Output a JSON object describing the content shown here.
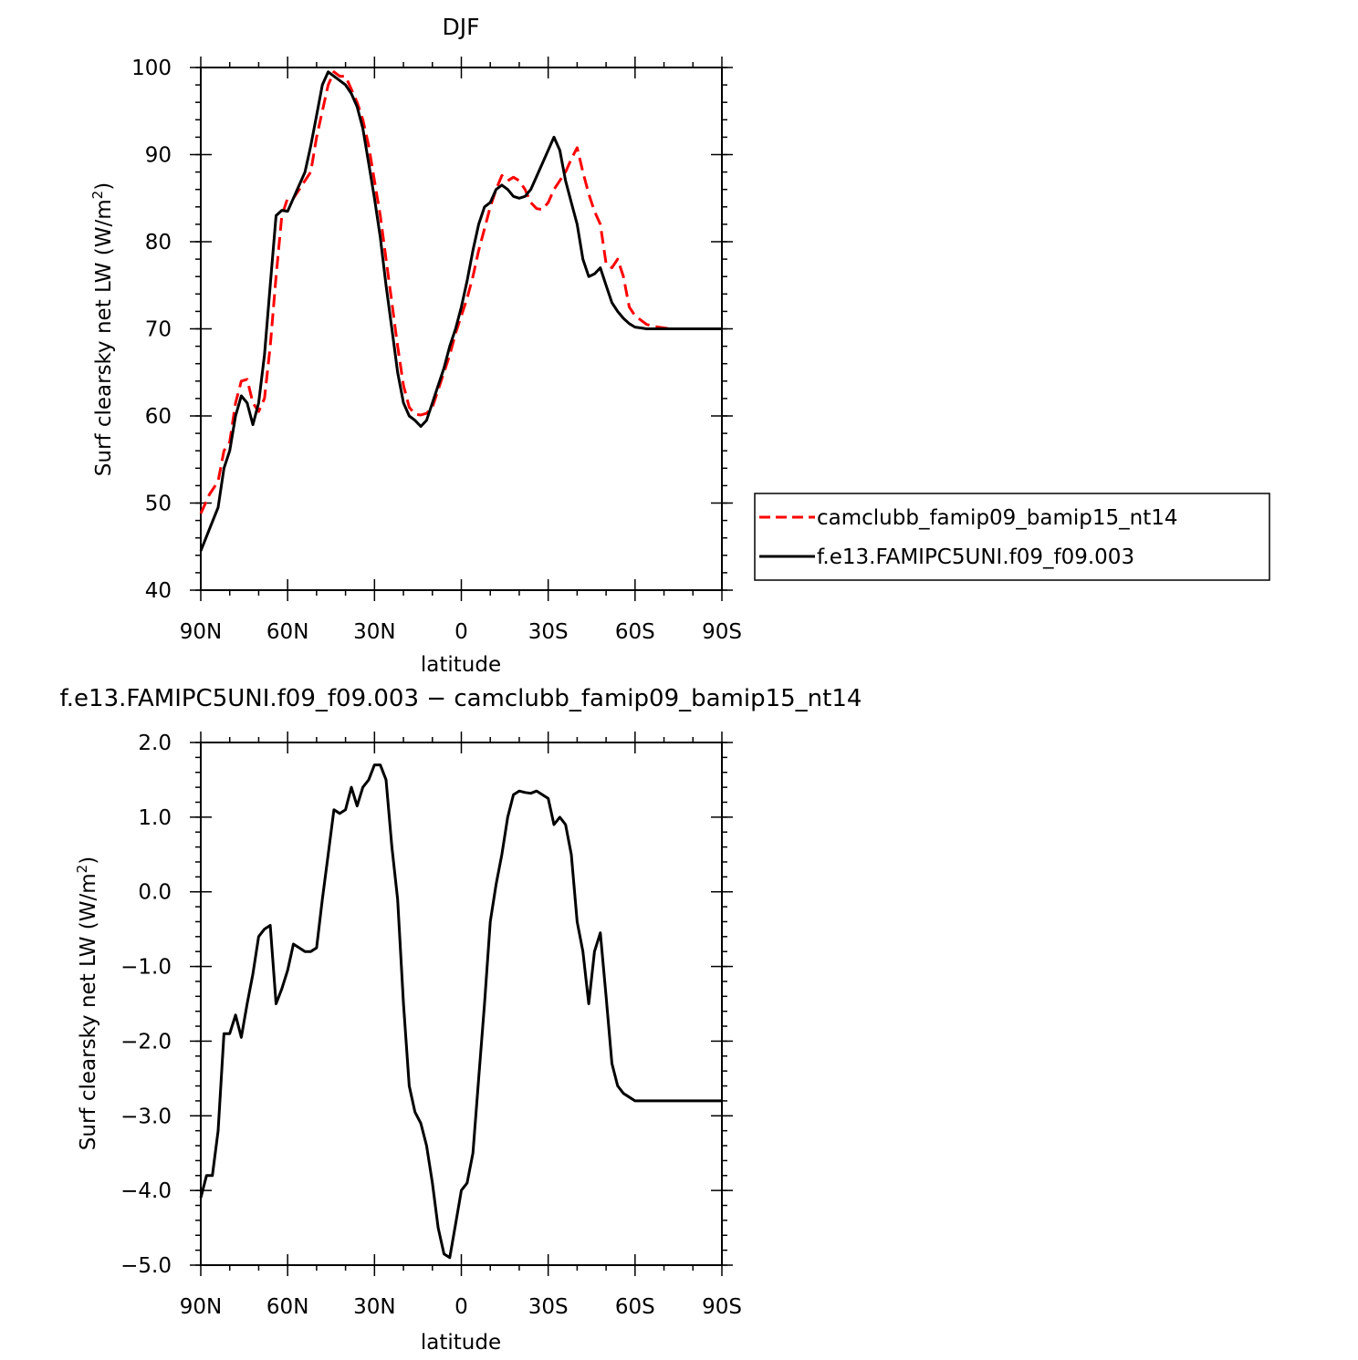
{
  "chart_data": [
    {
      "type": "line",
      "title": "DJF",
      "xlabel": "latitude",
      "ylabel": "Surf clearsky net LW (W/m²)",
      "xlim": [
        -90,
        90
      ],
      "ylim": [
        40,
        100
      ],
      "x_tick_values": [
        -90,
        -60,
        -30,
        0,
        30,
        60,
        90
      ],
      "x_tick_labels": [
        "90N",
        "60N",
        "30N",
        "0",
        "30S",
        "60S",
        "90S"
      ],
      "y_tick_values": [
        40,
        50,
        60,
        70,
        80,
        90,
        100
      ],
      "y_tick_labels": [
        "40",
        "50",
        "60",
        "70",
        "80",
        "90",
        "100"
      ],
      "legend_position": "right",
      "series": [
        {
          "name": "camclubb_famip09_bamip15_nt14",
          "color": "#ff0000",
          "dash": "dashed",
          "x": [
            -90,
            -87,
            -84,
            -82,
            -80,
            -78,
            -76,
            -74,
            -72,
            -70,
            -68,
            -66,
            -64,
            -62,
            -60,
            -58,
            -56,
            -54,
            -52,
            -50,
            -48,
            -46,
            -44,
            -42,
            -40,
            -38,
            -36,
            -34,
            -32,
            -30,
            -28,
            -26,
            -24,
            -22,
            -20,
            -18,
            -16,
            -14,
            -12,
            -10,
            -8,
            -6,
            -4,
            -2,
            0,
            2,
            4,
            6,
            8,
            10,
            12,
            14,
            16,
            18,
            20,
            22,
            24,
            26,
            28,
            30,
            32,
            34,
            36,
            38,
            40,
            42,
            44,
            46,
            48,
            50,
            52,
            54,
            56,
            58,
            60,
            62,
            64,
            66,
            68,
            70,
            72,
            74,
            76,
            78,
            80,
            82,
            84,
            86,
            88,
            90
          ],
          "y": [
            48.8,
            51,
            52.5,
            56,
            57,
            61.5,
            64,
            64.2,
            61.5,
            60.5,
            62,
            68,
            76,
            83,
            85,
            85,
            86,
            87,
            88,
            92,
            95,
            98,
            99.5,
            99,
            99,
            97.5,
            96,
            94,
            91,
            87,
            83,
            78,
            73,
            68,
            63.5,
            61,
            60.2,
            60.1,
            60.3,
            61,
            63,
            65,
            67,
            69.5,
            71.5,
            73.5,
            76,
            79,
            81.5,
            84,
            86,
            87.6,
            87,
            87.4,
            87,
            86,
            84.5,
            83.8,
            83.7,
            84.5,
            86,
            87,
            88,
            89.5,
            90.8,
            88,
            85.5,
            83.5,
            82,
            77.5,
            77,
            78,
            76,
            72.5,
            71.5,
            71,
            70.5,
            70.3,
            70.2,
            70.1,
            70,
            70,
            70,
            70,
            70,
            70,
            70,
            70,
            70,
            70
          ]
        },
        {
          "name": "f.e13.FAMIPC5UNI.f09_f09.003",
          "color": "#000000",
          "dash": "solid",
          "x": [
            -90,
            -87,
            -84,
            -82,
            -80,
            -78,
            -76,
            -74,
            -72,
            -70,
            -68,
            -66,
            -64,
            -62,
            -60,
            -58,
            -56,
            -54,
            -52,
            -50,
            -48,
            -46,
            -44,
            -42,
            -40,
            -38,
            -36,
            -34,
            -32,
            -30,
            -28,
            -26,
            -24,
            -22,
            -20,
            -18,
            -16,
            -14,
            -12,
            -10,
            -8,
            -6,
            -4,
            -2,
            0,
            2,
            4,
            6,
            8,
            10,
            12,
            14,
            16,
            18,
            20,
            22,
            24,
            26,
            28,
            30,
            32,
            34,
            36,
            38,
            40,
            42,
            44,
            46,
            48,
            50,
            52,
            54,
            56,
            58,
            60,
            62,
            64,
            66,
            68,
            70,
            72,
            74,
            76,
            78,
            80,
            82,
            84,
            86,
            88,
            90
          ],
          "y": [
            44.5,
            47,
            49.5,
            54,
            56,
            60,
            62.3,
            61.5,
            59,
            61.5,
            67,
            75,
            83,
            83.6,
            83.5,
            85,
            86.5,
            88,
            91,
            94.5,
            98,
            99.5,
            99,
            98.5,
            98,
            97,
            95.5,
            93,
            89,
            85,
            80.5,
            75,
            70,
            65,
            61.5,
            60,
            59.5,
            58.8,
            59.5,
            61.5,
            63.5,
            65.5,
            68,
            70,
            72.5,
            75.5,
            79,
            82,
            84,
            84.5,
            86,
            86.5,
            86,
            85.2,
            85,
            85.2,
            86,
            87.5,
            89,
            90.5,
            92,
            90.5,
            87,
            84.5,
            82,
            78,
            76,
            76.3,
            77,
            75,
            73,
            72,
            71.2,
            70.6,
            70.2,
            70.1,
            70,
            70,
            70,
            70,
            70,
            70,
            70,
            70,
            70,
            70,
            70,
            70,
            70,
            70
          ]
        }
      ]
    },
    {
      "type": "line",
      "title": "f.e13.FAMIPC5UNI.f09_f09.003 − camclubb_famip09_bamip15_nt14",
      "xlabel": "latitude",
      "ylabel": "Surf clearsky net LW (W/m²)",
      "xlim": [
        -90,
        90
      ],
      "ylim": [
        -5,
        2
      ],
      "x_tick_values": [
        -90,
        -60,
        -30,
        0,
        30,
        60,
        90
      ],
      "x_tick_labels": [
        "90N",
        "60N",
        "30N",
        "0",
        "30S",
        "60S",
        "90S"
      ],
      "y_tick_values": [
        -5,
        -4,
        -3,
        -2,
        -1,
        0,
        1,
        2
      ],
      "y_tick_labels": [
        "−5.0",
        "−4.0",
        "−3.0",
        "−2.0",
        "−1.0",
        "0.0",
        "1.0",
        "2.0"
      ],
      "series": [
        {
          "color": "#000000",
          "dash": "solid",
          "x": [
            -90,
            -88,
            -86,
            -84,
            -82,
            -80,
            -78,
            -76,
            -74,
            -72,
            -70,
            -68,
            -66,
            -64,
            -62,
            -60,
            -58,
            -56,
            -54,
            -52,
            -50,
            -48,
            -46,
            -44,
            -42,
            -40,
            -38,
            -36,
            -34,
            -32,
            -30,
            -28,
            -26,
            -24,
            -22,
            -20,
            -18,
            -16,
            -14,
            -12,
            -10,
            -8,
            -6,
            -4,
            -2,
            0,
            2,
            4,
            6,
            8,
            10,
            12,
            14,
            16,
            18,
            20,
            22,
            24,
            26,
            28,
            30,
            32,
            34,
            36,
            38,
            40,
            42,
            44,
            46,
            48,
            50,
            52,
            54,
            56,
            58,
            60,
            62,
            64,
            66,
            68,
            70,
            72,
            74,
            76,
            78,
            80,
            82,
            84,
            86,
            88,
            90
          ],
          "y": [
            -4.1,
            -3.8,
            -3.8,
            -3.2,
            -1.9,
            -1.9,
            -1.65,
            -1.95,
            -1.5,
            -1.1,
            -0.6,
            -0.5,
            -0.45,
            -1.5,
            -1.3,
            -1.05,
            -0.7,
            -0.75,
            -0.8,
            -0.8,
            -0.75,
            -0.1,
            0.5,
            1.1,
            1.05,
            1.1,
            1.4,
            1.15,
            1.4,
            1.5,
            1.7,
            1.7,
            1.5,
            0.6,
            -0.1,
            -1.5,
            -2.6,
            -2.95,
            -3.1,
            -3.4,
            -3.9,
            -4.5,
            -4.85,
            -4.9,
            -4.45,
            -4.0,
            -3.9,
            -3.5,
            -2.5,
            -1.5,
            -0.4,
            0.1,
            0.5,
            1.0,
            1.3,
            1.35,
            1.33,
            1.32,
            1.35,
            1.3,
            1.25,
            0.9,
            1.0,
            0.9,
            0.5,
            -0.4,
            -0.8,
            -1.5,
            -0.8,
            -0.55,
            -1.4,
            -2.3,
            -2.6,
            -2.7,
            -2.75,
            -2.8,
            -2.8,
            -2.8,
            -2.8,
            -2.8,
            -2.8,
            -2.8,
            -2.8,
            -2.8,
            -2.8,
            -2.8,
            -2.8,
            -2.8,
            -2.8,
            -2.8,
            -2.8
          ]
        }
      ]
    }
  ]
}
